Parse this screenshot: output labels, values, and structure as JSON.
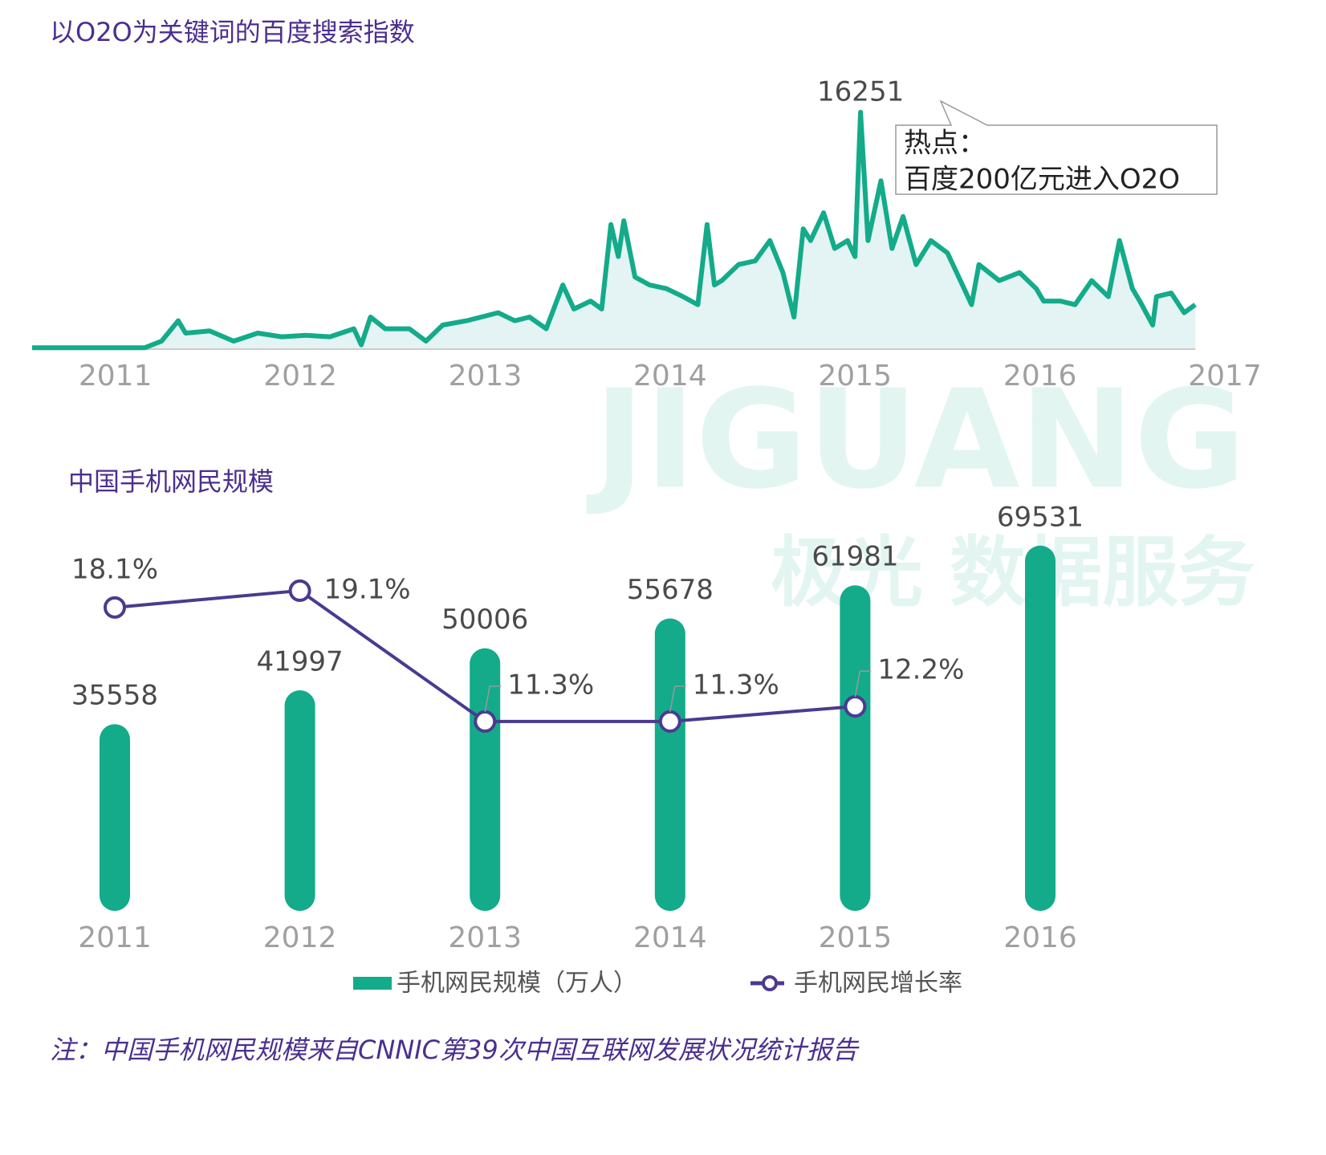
{
  "chart_data": [
    {
      "type": "area",
      "title": "以O2O为关键词的百度搜索指数",
      "x": [
        2010.55,
        2011.16,
        2011.25,
        2011.34,
        2011.38,
        2011.51,
        2011.64,
        2011.77,
        2011.9,
        2012.03,
        2012.16,
        2012.29,
        2012.33,
        2012.38,
        2012.46,
        2012.59,
        2012.68,
        2012.77,
        2012.9,
        2013.07,
        2013.16,
        2013.24,
        2013.33,
        2013.42,
        2013.48,
        2013.57,
        2013.63,
        2013.68,
        2013.72,
        2013.75,
        2013.81,
        2013.89,
        2013.98,
        2014.07,
        2014.15,
        2014.2,
        2014.24,
        2014.28,
        2014.37,
        2014.46,
        2014.54,
        2014.61,
        2014.67,
        2014.72,
        2014.76,
        2014.83,
        2014.89,
        2014.96,
        2015.0,
        2015.03,
        2015.07,
        2015.14,
        2015.2,
        2015.26,
        2015.33,
        2015.41,
        2015.5,
        2015.59,
        2015.63,
        2015.67,
        2015.78,
        2015.89,
        2015.98,
        2016.02,
        2016.11,
        2016.19,
        2016.28,
        2016.37,
        2016.43,
        2016.5,
        2016.54,
        2016.61,
        2016.63,
        2016.71,
        2016.78,
        2016.84
      ],
      "series": [
        {
          "name": "百度搜索指数",
          "color": "#13ab8a",
          "fill": "#e4f3f3",
          "values": [
            100,
            100,
            550,
            1950,
            1100,
            1250,
            550,
            1100,
            850,
            950,
            850,
            1400,
            300,
            2200,
            1400,
            1400,
            550,
            1650,
            1950,
            2500,
            1950,
            2200,
            1400,
            4400,
            2750,
            3300,
            2750,
            8550,
            6350,
            8800,
            4950,
            4400,
            4150,
            3600,
            3050,
            8550,
            4400,
            4700,
            5800,
            6050,
            7450,
            5250,
            2200,
            8250,
            7450,
            9350,
            6900,
            7450,
            6350,
            16251,
            7450,
            11550,
            6900,
            9100,
            5800,
            7450,
            6600,
            4150,
            3050,
            5800,
            4700,
            5250,
            4150,
            3300,
            3300,
            3050,
            4700,
            3600,
            7450,
            4150,
            3300,
            1650,
            3600,
            3850,
            2500,
            3050
          ]
        }
      ],
      "xlim": [
        2010.55,
        2017
      ],
      "xticks": [
        2011,
        2012,
        2013,
        2014,
        2015,
        2016,
        2017
      ],
      "ylim": [
        0,
        18000
      ],
      "annotation": [
        "热点：",
        "百度200亿元进入O2O"
      ]
    },
    {
      "type": "bar",
      "title": "中国手机网民规模",
      "categories": [
        "2011",
        "2012",
        "2013",
        "2014",
        "2015",
        "2016"
      ],
      "series": [
        {
          "name": "手机网民规模（万人）",
          "color": "#13ab8a",
          "values": [
            35558,
            41997,
            50006,
            55678,
            61981,
            69531
          ]
        },
        {
          "name": "手机网民增长率",
          "color": "#4b3a8f",
          "type": "line",
          "axis": "y2",
          "values": [
            18.1,
            19.1,
            11.3,
            11.3,
            12.2,
            null
          ],
          "value_labels": [
            "18.1%",
            "19.1%",
            "11.3%",
            "11.3%",
            "12.2%",
            null
          ]
        }
      ],
      "ylim": [
        0,
        75000
      ],
      "y2lim": [
        0,
        23.5
      ]
    }
  ],
  "watermark": {
    "brand": "JIGUANG",
    "tagline": "极光 数据服务"
  },
  "note": "注：中国手机网民规模来自CNNIC第39次中国互联网发展状况统计报告"
}
